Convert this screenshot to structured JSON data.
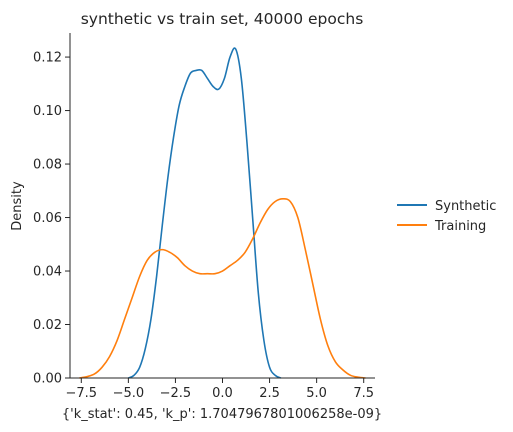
{
  "chart_data": {
    "type": "line",
    "title": "synthetic vs train set, 40000 epochs",
    "xlabel": "{'k_stat': 0.45, 'k_p': 1.7047967801006258e-09}",
    "ylabel": "Density",
    "xlim": [
      -8.1,
      8.1
    ],
    "ylim": [
      0,
      0.129
    ],
    "xticks": [
      -7.5,
      -5.0,
      -2.5,
      0.0,
      2.5,
      5.0,
      7.5
    ],
    "xtick_labels": [
      "−7.5",
      "−5.0",
      "−2.5",
      "0.0",
      "2.5",
      "5.0",
      "7.5"
    ],
    "yticks": [
      0.0,
      0.02,
      0.04,
      0.06,
      0.08,
      0.1,
      0.12
    ],
    "ytick_labels": [
      "0.00",
      "0.02",
      "0.04",
      "0.06",
      "0.08",
      "0.10",
      "0.12"
    ],
    "grid": false,
    "legend_position": "right-outside",
    "series": [
      {
        "name": "Synthetic",
        "color": "#1f77b4",
        "x": [
          -5.0,
          -4.7,
          -4.4,
          -4.1,
          -3.8,
          -3.5,
          -3.2,
          -2.9,
          -2.6,
          -2.3,
          -2.0,
          -1.7,
          -1.4,
          -1.1,
          -0.8,
          -0.5,
          -0.2,
          0.1,
          0.4,
          0.7,
          1.0,
          1.3,
          1.6,
          1.9,
          2.2,
          2.5,
          2.8,
          3.1
        ],
        "y": [
          0.0,
          0.001,
          0.004,
          0.011,
          0.022,
          0.038,
          0.057,
          0.075,
          0.09,
          0.102,
          0.109,
          0.114,
          0.115,
          0.115,
          0.112,
          0.109,
          0.108,
          0.112,
          0.12,
          0.123,
          0.112,
          0.088,
          0.06,
          0.032,
          0.014,
          0.004,
          0.001,
          0.0
        ]
      },
      {
        "name": "Training",
        "color": "#ff7f0e",
        "x": [
          -7.6,
          -7.2,
          -6.8,
          -6.4,
          -6.0,
          -5.6,
          -5.2,
          -4.8,
          -4.4,
          -4.0,
          -3.6,
          -3.2,
          -2.8,
          -2.4,
          -2.0,
          -1.6,
          -1.2,
          -0.8,
          -0.4,
          0.0,
          0.4,
          0.8,
          1.2,
          1.6,
          2.0,
          2.4,
          2.8,
          3.2,
          3.6,
          4.0,
          4.4,
          4.8,
          5.2,
          5.6,
          6.0,
          6.4,
          6.8,
          7.2,
          7.6
        ],
        "y": [
          0.0,
          0.0005,
          0.0015,
          0.004,
          0.008,
          0.014,
          0.022,
          0.03,
          0.038,
          0.044,
          0.047,
          0.048,
          0.047,
          0.045,
          0.042,
          0.04,
          0.039,
          0.039,
          0.039,
          0.04,
          0.042,
          0.044,
          0.047,
          0.052,
          0.058,
          0.063,
          0.066,
          0.067,
          0.066,
          0.06,
          0.048,
          0.035,
          0.022,
          0.012,
          0.006,
          0.003,
          0.001,
          0.0003,
          0.0
        ]
      }
    ]
  }
}
